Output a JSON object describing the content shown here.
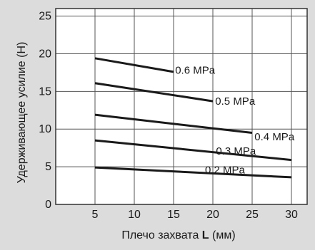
{
  "colors": {
    "panel_bg": "#dcdcdc",
    "plot_bg": "#ffffff",
    "grid": "#555555",
    "frame": "#333333",
    "line": "#1a1a1a",
    "text": "#1a1a1a"
  },
  "chart_data": {
    "type": "line",
    "title": "",
    "ylabel": "Удерживающее усилие (Н)",
    "xlabel": "Плечо захвата L (мм)",
    "xlabel_parts": {
      "before": "Плечо захвата ",
      "bold": "L",
      "after": " (мм)"
    },
    "xlim": [
      0,
      32
    ],
    "ylim": [
      0,
      26
    ],
    "x_ticks": [
      5,
      10,
      15,
      20,
      25,
      30
    ],
    "y_ticks": [
      0,
      5,
      10,
      15,
      20,
      25
    ],
    "grid": true,
    "series": [
      {
        "name": "0.6 MPa",
        "x": [
          5,
          15
        ],
        "y": [
          19.4,
          17.6
        ],
        "label_at": [
          15.2,
          17.8
        ]
      },
      {
        "name": "0.5 MPa",
        "x": [
          5,
          20
        ],
        "y": [
          16.1,
          13.7
        ],
        "label_at": [
          20.3,
          13.7
        ]
      },
      {
        "name": "0.4 MPa",
        "x": [
          5,
          25
        ],
        "y": [
          11.9,
          9.5
        ],
        "label_at": [
          25.3,
          9.0
        ]
      },
      {
        "name": "0.3 MPa",
        "x": [
          5,
          30
        ],
        "y": [
          8.5,
          5.9
        ],
        "label_at": [
          20.4,
          7.1
        ]
      },
      {
        "name": "0.2 MPa",
        "x": [
          5,
          30
        ],
        "y": [
          4.9,
          3.6
        ],
        "label_at": [
          19.0,
          4.6
        ]
      }
    ]
  }
}
